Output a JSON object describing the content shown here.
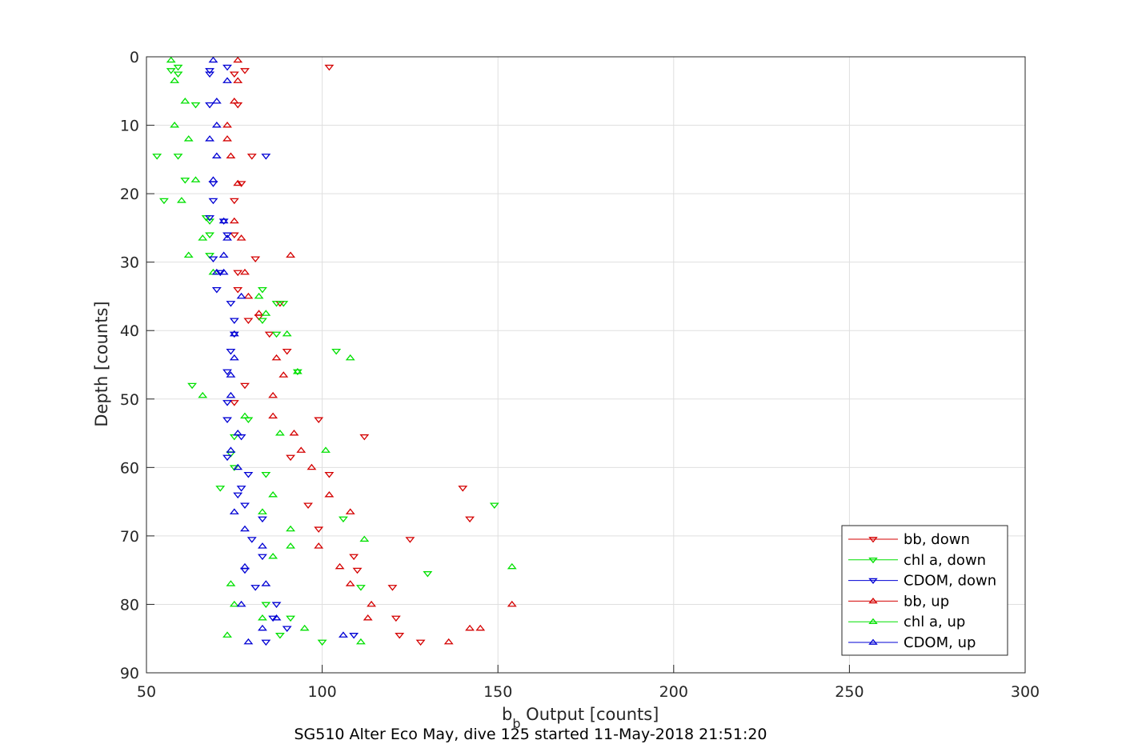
{
  "chart_data": {
    "type": "scatter",
    "xlabel_main": "b",
    "xlabel_sub": "b",
    "xlabel_rest": " Output [counts]",
    "ylabel": "Depth [counts]",
    "caption": "SG510 Alter Eco May, dive 125 started 11-May-2018 21:51:20",
    "xlim": [
      50,
      300
    ],
    "ylim": [
      0,
      90
    ],
    "y_reversed": true,
    "grid": true,
    "legend_position": "bottom-right",
    "x_ticks": [
      "50",
      "100",
      "150",
      "200",
      "250",
      "300"
    ],
    "y_ticks": [
      "0",
      "10",
      "20",
      "30",
      "40",
      "50",
      "60",
      "70",
      "80",
      "90"
    ],
    "series": [
      {
        "name": "bb, down",
        "color": "#d40000",
        "marker": "triangle-down",
        "points": [
          [
            102,
            1.5
          ],
          [
            78,
            2
          ],
          [
            75,
            2.5
          ],
          [
            76,
            7
          ],
          [
            77,
            18.5
          ],
          [
            80,
            14.5
          ],
          [
            75,
            21
          ],
          [
            75,
            26
          ],
          [
            81,
            29.5
          ],
          [
            76,
            31.5
          ],
          [
            76,
            34
          ],
          [
            79,
            38.5
          ],
          [
            82,
            38
          ],
          [
            85,
            40.5
          ],
          [
            88,
            36
          ],
          [
            90,
            43
          ],
          [
            78,
            48
          ],
          [
            75,
            50.5
          ],
          [
            99,
            53
          ],
          [
            112,
            55.5
          ],
          [
            91,
            58.5
          ],
          [
            102,
            61
          ],
          [
            140,
            63
          ],
          [
            96,
            65.5
          ],
          [
            142,
            67.5
          ],
          [
            125,
            70.5
          ],
          [
            109,
            73
          ],
          [
            110,
            75
          ],
          [
            120,
            77.5
          ],
          [
            121,
            82
          ],
          [
            122,
            84.5
          ],
          [
            128,
            85.5
          ],
          [
            99,
            69
          ]
        ]
      },
      {
        "name": "chl a, down",
        "color": "#00e000",
        "marker": "triangle-down",
        "points": [
          [
            57,
            2
          ],
          [
            59,
            1.5
          ],
          [
            59,
            2.5
          ],
          [
            64,
            7
          ],
          [
            59,
            14.5
          ],
          [
            53,
            14.5
          ],
          [
            61,
            18
          ],
          [
            55,
            21
          ],
          [
            67,
            23.5
          ],
          [
            68,
            24
          ],
          [
            68,
            26
          ],
          [
            68,
            29
          ],
          [
            83,
            34
          ],
          [
            83,
            38.5
          ],
          [
            87,
            36
          ],
          [
            89,
            36
          ],
          [
            87,
            40.5
          ],
          [
            93,
            46
          ],
          [
            104,
            43
          ],
          [
            63,
            48
          ],
          [
            79,
            53
          ],
          [
            75,
            55.5
          ],
          [
            74,
            58
          ],
          [
            84,
            61
          ],
          [
            71,
            63
          ],
          [
            149,
            65.5
          ],
          [
            106,
            67.5
          ],
          [
            130,
            75.5
          ],
          [
            111,
            77.5
          ],
          [
            84,
            80
          ],
          [
            91,
            82
          ],
          [
            88,
            84.5
          ],
          [
            100,
            85.5
          ],
          [
            75,
            60
          ]
        ]
      },
      {
        "name": "CDOM, down",
        "color": "#0000d4",
        "marker": "triangle-down",
        "points": [
          [
            68,
            2
          ],
          [
            68,
            2.5
          ],
          [
            73,
            1.5
          ],
          [
            68,
            7
          ],
          [
            84,
            14.5
          ],
          [
            69,
            18.5
          ],
          [
            69,
            21
          ],
          [
            68,
            23.5
          ],
          [
            73,
            26
          ],
          [
            69,
            29.5
          ],
          [
            70,
            34
          ],
          [
            71,
            31.5
          ],
          [
            74,
            36
          ],
          [
            75,
            38.5
          ],
          [
            75,
            40.5
          ],
          [
            74,
            43
          ],
          [
            73,
            46
          ],
          [
            73,
            50.5
          ],
          [
            73,
            53
          ],
          [
            77,
            55.5
          ],
          [
            73,
            58.5
          ],
          [
            79,
            61
          ],
          [
            77,
            63
          ],
          [
            76,
            64
          ],
          [
            78,
            65.5
          ],
          [
            83,
            67.5
          ],
          [
            80,
            70.5
          ],
          [
            78,
            75
          ],
          [
            81,
            77.5
          ],
          [
            87,
            80
          ],
          [
            86,
            82
          ],
          [
            90,
            83.5
          ],
          [
            84,
            85.5
          ],
          [
            109,
            84.5
          ],
          [
            83,
            73
          ],
          [
            72,
            24
          ]
        ]
      },
      {
        "name": "bb, up",
        "color": "#d40000",
        "marker": "triangle-up",
        "points": [
          [
            76,
            0.5
          ],
          [
            76,
            3.5
          ],
          [
            75,
            6.5
          ],
          [
            73,
            10
          ],
          [
            73,
            12
          ],
          [
            74,
            14.5
          ],
          [
            76,
            18.5
          ],
          [
            75,
            24
          ],
          [
            77,
            26.5
          ],
          [
            91,
            29
          ],
          [
            78,
            31.5
          ],
          [
            79,
            35
          ],
          [
            87,
            44
          ],
          [
            89,
            46.5
          ],
          [
            86,
            49.5
          ],
          [
            86,
            52.5
          ],
          [
            92,
            55
          ],
          [
            94,
            57.5
          ],
          [
            97,
            60
          ],
          [
            102,
            64
          ],
          [
            108,
            66.5
          ],
          [
            99,
            71.5
          ],
          [
            105,
            74.5
          ],
          [
            108,
            77
          ],
          [
            114,
            80
          ],
          [
            113,
            82
          ],
          [
            142,
            83.5
          ],
          [
            145,
            83.5
          ],
          [
            136,
            85.5
          ],
          [
            154,
            80
          ],
          [
            82,
            37.5
          ]
        ]
      },
      {
        "name": "chl a, up",
        "color": "#00e000",
        "marker": "triangle-up",
        "points": [
          [
            57,
            0.5
          ],
          [
            58,
            3.5
          ],
          [
            61,
            6.5
          ],
          [
            58,
            10
          ],
          [
            62,
            12
          ],
          [
            64,
            18
          ],
          [
            60,
            21
          ],
          [
            66,
            26.5
          ],
          [
            62,
            29
          ],
          [
            69,
            31.5
          ],
          [
            82,
            35
          ],
          [
            84,
            37.5
          ],
          [
            90,
            40.5
          ],
          [
            108,
            44
          ],
          [
            66,
            49.5
          ],
          [
            78,
            52.5
          ],
          [
            88,
            55
          ],
          [
            101,
            57.5
          ],
          [
            86,
            64
          ],
          [
            83,
            66.5
          ],
          [
            91,
            69
          ],
          [
            112,
            70.5
          ],
          [
            91,
            71.5
          ],
          [
            86,
            73
          ],
          [
            154,
            74.5
          ],
          [
            74,
            77
          ],
          [
            75,
            80
          ],
          [
            83,
            82
          ],
          [
            95,
            83.5
          ],
          [
            73,
            84.5
          ],
          [
            111,
            85.5
          ],
          [
            93,
            46
          ]
        ]
      },
      {
        "name": "CDOM, up",
        "color": "#0000d4",
        "marker": "triangle-up",
        "points": [
          [
            69,
            0.5
          ],
          [
            73,
            3.5
          ],
          [
            70,
            6.5
          ],
          [
            70,
            10
          ],
          [
            68,
            12
          ],
          [
            70,
            14.5
          ],
          [
            69,
            18
          ],
          [
            72,
            24
          ],
          [
            73,
            26.5
          ],
          [
            72,
            29
          ],
          [
            72,
            31.5
          ],
          [
            77,
            35
          ],
          [
            75,
            40.5
          ],
          [
            75,
            44
          ],
          [
            74,
            46.5
          ],
          [
            74,
            49.5
          ],
          [
            74,
            57.5
          ],
          [
            76,
            60
          ],
          [
            75,
            66.5
          ],
          [
            78,
            69
          ],
          [
            83,
            71.5
          ],
          [
            78,
            74.5
          ],
          [
            84,
            77
          ],
          [
            77,
            80
          ],
          [
            87,
            82
          ],
          [
            83,
            83.5
          ],
          [
            79,
            85.5
          ],
          [
            106,
            84.5
          ],
          [
            70,
            31.5
          ],
          [
            76,
            55
          ]
        ]
      }
    ]
  }
}
